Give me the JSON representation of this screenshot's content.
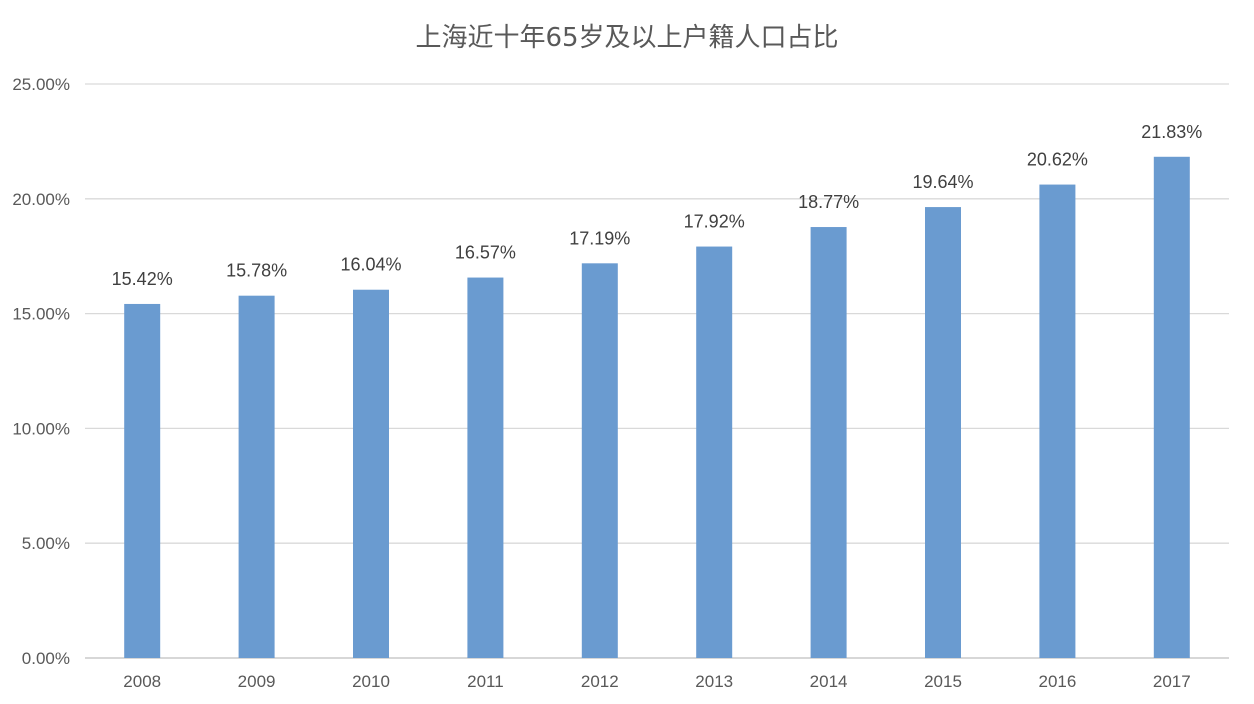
{
  "chart_data": {
    "type": "bar",
    "title": "上海近十年65岁及以上户籍人口占比",
    "categories": [
      "2008",
      "2009",
      "2010",
      "2011",
      "2012",
      "2013",
      "2014",
      "2015",
      "2016",
      "2017"
    ],
    "values": [
      15.42,
      15.78,
      16.04,
      16.57,
      17.19,
      17.92,
      18.77,
      19.64,
      20.62,
      21.83
    ],
    "data_labels": [
      "15.42%",
      "15.78%",
      "16.04%",
      "16.57%",
      "17.19%",
      "17.92%",
      "18.77%",
      "19.64%",
      "20.62%",
      "21.83%"
    ],
    "y_ticks": [
      0,
      5,
      10,
      15,
      20,
      25
    ],
    "y_tick_labels": [
      "0.00%",
      "5.00%",
      "10.00%",
      "15.00%",
      "20.00%",
      "25.00%"
    ],
    "ylim": [
      0,
      25
    ],
    "grid": true,
    "legend": "none",
    "bar_color": "#6a9bd0",
    "grid_color": "#d9d9d9"
  }
}
